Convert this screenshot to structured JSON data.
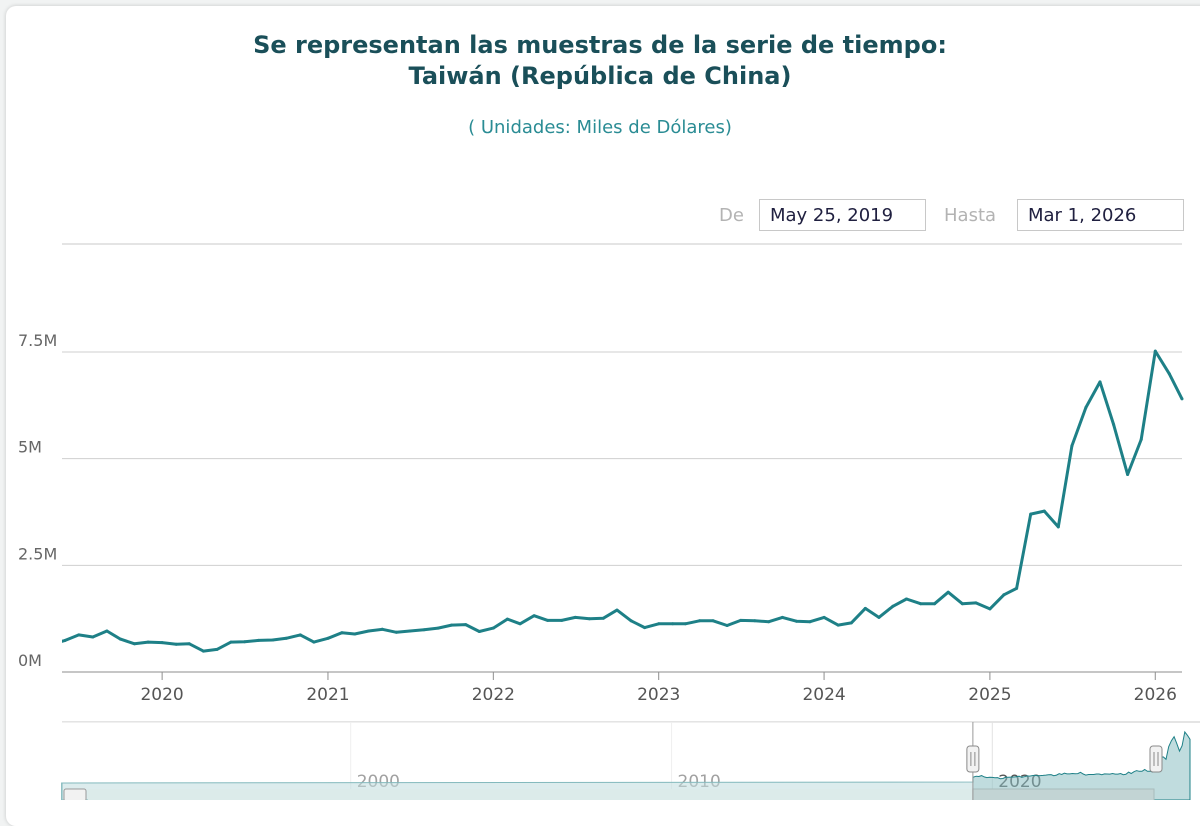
{
  "header": {
    "title_line1": "Se representan las muestras de la serie de tiempo:",
    "title_line2": "Taiwán (República de China)",
    "subtitle": "( Unidades:  Miles de Dólares)"
  },
  "range_selector": {
    "from_label": "De",
    "from_value": "May 25, 2019",
    "to_label": "Hasta",
    "to_value": "Mar 1, 2026"
  },
  "navigator": {
    "labels": [
      "2000",
      "2010",
      "2020"
    ]
  },
  "colors": {
    "series": "#1e8087",
    "navigator_fill": "#8dbfc2",
    "text": "#1a4f59"
  },
  "chart_data": {
    "type": "line",
    "title": "Se representan las muestras de la serie de tiempo: Taiwán (República de China)",
    "subtitle": "( Unidades:  Miles de Dólares)",
    "ylabel": "",
    "xlabel": "",
    "ylim": [
      0,
      10000000
    ],
    "xlim": [
      "2019-05-25",
      "2026-03-01"
    ],
    "y_ticks": [
      {
        "value": 0,
        "label": "0M"
      },
      {
        "value": 2500000,
        "label": "2.5M"
      },
      {
        "value": 5000000,
        "label": "5M"
      },
      {
        "value": 7500000,
        "label": "7.5M"
      }
    ],
    "x_ticks": [
      "2020",
      "2021",
      "2022",
      "2023",
      "2024",
      "2025",
      "2026"
    ],
    "grid": true,
    "legend": "none",
    "series": [
      {
        "x": [
          "2019-05-25",
          "2019-06-01",
          "2019-07-01",
          "2019-08-01",
          "2019-09-01",
          "2019-10-01",
          "2019-11-01",
          "2019-12-01",
          "2020-01-01",
          "2020-02-01",
          "2020-03-01",
          "2020-04-01",
          "2020-05-01",
          "2020-06-01",
          "2020-07-01",
          "2020-08-01",
          "2020-09-01",
          "2020-10-01",
          "2020-11-01",
          "2020-12-01",
          "2021-01-01",
          "2021-02-01",
          "2021-03-01",
          "2021-04-01",
          "2021-05-01",
          "2021-06-01",
          "2021-07-01",
          "2021-08-01",
          "2021-09-01",
          "2021-10-01",
          "2021-11-01",
          "2021-12-01",
          "2022-01-01",
          "2022-02-01",
          "2022-03-01",
          "2022-04-01",
          "2022-05-01",
          "2022-06-01",
          "2022-07-01",
          "2022-08-01",
          "2022-09-01",
          "2022-10-01",
          "2022-11-01",
          "2022-12-01",
          "2023-01-01",
          "2023-02-01",
          "2023-03-01",
          "2023-04-01",
          "2023-05-01",
          "2023-06-01",
          "2023-07-01",
          "2023-08-01",
          "2023-09-01",
          "2023-10-01",
          "2023-11-01",
          "2023-12-01",
          "2024-01-01",
          "2024-02-01",
          "2024-03-01",
          "2024-04-01",
          "2024-05-01",
          "2024-06-01",
          "2024-07-01",
          "2024-08-01",
          "2024-09-01",
          "2024-10-01",
          "2024-11-01",
          "2024-12-01",
          "2025-01-01",
          "2025-02-01",
          "2025-03-01",
          "2025-04-01",
          "2025-05-01",
          "2025-06-01",
          "2025-07-01",
          "2025-08-01",
          "2025-09-01",
          "2025-10-01",
          "2025-11-01",
          "2025-12-01",
          "2026-01-01",
          "2026-02-01",
          "2026-03-01"
        ],
        "y": [
          720000,
          740000,
          870000,
          820000,
          960000,
          770000,
          660000,
          700000,
          690000,
          650000,
          660000,
          490000,
          530000,
          700000,
          710000,
          740000,
          750000,
          790000,
          870000,
          700000,
          790000,
          920000,
          890000,
          960000,
          1000000,
          930000,
          960000,
          990000,
          1030000,
          1100000,
          1110000,
          950000,
          1030000,
          1240000,
          1130000,
          1320000,
          1210000,
          1210000,
          1280000,
          1250000,
          1260000,
          1450000,
          1200000,
          1040000,
          1130000,
          1130000,
          1130000,
          1200000,
          1200000,
          1090000,
          1210000,
          1200000,
          1180000,
          1280000,
          1190000,
          1180000,
          1280000,
          1100000,
          1150000,
          1490000,
          1280000,
          1540000,
          1710000,
          1600000,
          1600000,
          1870000,
          1600000,
          1620000,
          1480000,
          1810000,
          1960000,
          3700000,
          3770000,
          3400000,
          5300000,
          6200000,
          6800000,
          5800000,
          4630000,
          5450000,
          7520000,
          6990000,
          6400000
        ]
      }
    ]
  }
}
